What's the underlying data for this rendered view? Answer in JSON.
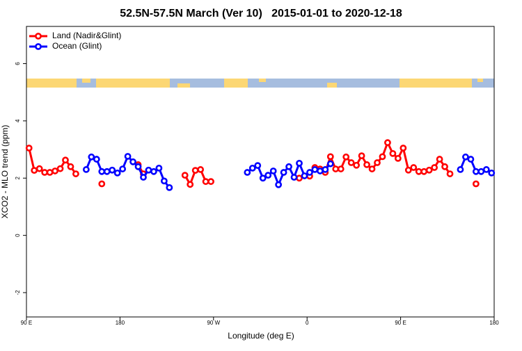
{
  "chart_data": {
    "type": "line",
    "title": "52.5N-57.5N March (Ver 10)   2015-01-01 to 2020-12-18",
    "x_label": "Longitude (deg E)",
    "y_label": "XCO2 - MLO trend (ppm)",
    "x": [
      92.5,
      97.5,
      102.5,
      107.5,
      112.5,
      117.5,
      122.5,
      127.5,
      132.5,
      137.5,
      142.5,
      147.5,
      152.5,
      157.5,
      162.5,
      167.5,
      172.5,
      177.5,
      182.5,
      187.5,
      192.5,
      197.5,
      202.5,
      207.5,
      212.5,
      217.5,
      222.5,
      227.5,
      232.5,
      237.5,
      242.5,
      247.5,
      252.5,
      257.5,
      262.5,
      267.5,
      272.5,
      277.5,
      282.5,
      287.5,
      292.5,
      297.5,
      302.5,
      307.5,
      312.5,
      317.5,
      322.5,
      327.5,
      332.5,
      337.5,
      342.5,
      347.5,
      352.5,
      357.5,
      362.5,
      367.5,
      372.5,
      377.5,
      382.5,
      387.5,
      392.5,
      397.5,
      402.5,
      407.5,
      412.5,
      417.5,
      422.5,
      427.5,
      432.5,
      437.5,
      442.5,
      447.5,
      452.5,
      457.5,
      462.5,
      467.5,
      472.5,
      477.5,
      482.5,
      487.5,
      492.5,
      497.5,
      502.5,
      507.5,
      512.5,
      517.5,
      522.5,
      527.5,
      532.5,
      537.5
    ],
    "series": [
      {
        "name": "Land (Nadir&Glint)",
        "color": "#ff0000",
        "values": [
          3.05,
          2.27,
          2.33,
          2.2,
          2.2,
          2.25,
          2.33,
          2.63,
          2.4,
          2.15,
          null,
          null,
          null,
          null,
          1.8,
          null,
          null,
          null,
          null,
          null,
          null,
          2.47,
          2.15,
          null,
          null,
          null,
          null,
          null,
          null,
          null,
          2.1,
          1.78,
          2.27,
          2.3,
          1.88,
          1.88,
          null,
          null,
          null,
          null,
          null,
          null,
          null,
          null,
          null,
          null,
          null,
          null,
          null,
          null,
          null,
          null,
          2.0,
          null,
          2.07,
          2.37,
          2.32,
          2.2,
          2.75,
          2.32,
          2.32,
          2.74,
          2.54,
          2.45,
          2.78,
          2.47,
          2.32,
          2.54,
          2.75,
          3.24,
          2.86,
          2.69,
          3.05,
          2.28,
          2.37,
          2.23,
          2.23,
          2.28,
          2.37,
          2.66,
          2.4,
          2.15,
          null,
          null,
          null,
          null,
          1.8,
          null,
          null,
          null
        ]
      },
      {
        "name": "Ocean (Glint)",
        "color": "#0000ff",
        "values": [
          null,
          null,
          null,
          null,
          null,
          null,
          null,
          null,
          null,
          null,
          null,
          2.3,
          2.74,
          2.66,
          2.23,
          2.23,
          2.28,
          2.18,
          2.32,
          2.76,
          2.57,
          2.4,
          2.03,
          2.28,
          2.23,
          2.35,
          1.9,
          1.67,
          null,
          null,
          null,
          null,
          null,
          null,
          null,
          null,
          null,
          null,
          null,
          null,
          null,
          null,
          2.2,
          2.35,
          2.44,
          2.0,
          2.1,
          2.25,
          1.77,
          2.2,
          2.4,
          2.03,
          2.52,
          2.08,
          2.2,
          2.3,
          2.25,
          2.3,
          2.5,
          null,
          null,
          null,
          null,
          null,
          null,
          null,
          null,
          null,
          null,
          null,
          null,
          null,
          null,
          null,
          null,
          null,
          null,
          null,
          null,
          null,
          null,
          null,
          null,
          2.3,
          2.74,
          2.66,
          2.23,
          2.23,
          2.3,
          2.18
        ]
      }
    ],
    "xlim": [
      90,
      540
    ],
    "xticks": [
      {
        "value": 90,
        "label": "90 E"
      },
      180,
      {
        "value": 270,
        "label": "90 W"
      },
      {
        "value": 360,
        "label": "0"
      },
      {
        "value": 450,
        "label": "90 E"
      },
      {
        "value": 540,
        "label": "180"
      }
    ],
    "ylim": [
      -2.85,
      7.3
    ],
    "yticks": [
      -2,
      0,
      2,
      4,
      6
    ],
    "legend": "top-left",
    "grid": false
  }
}
